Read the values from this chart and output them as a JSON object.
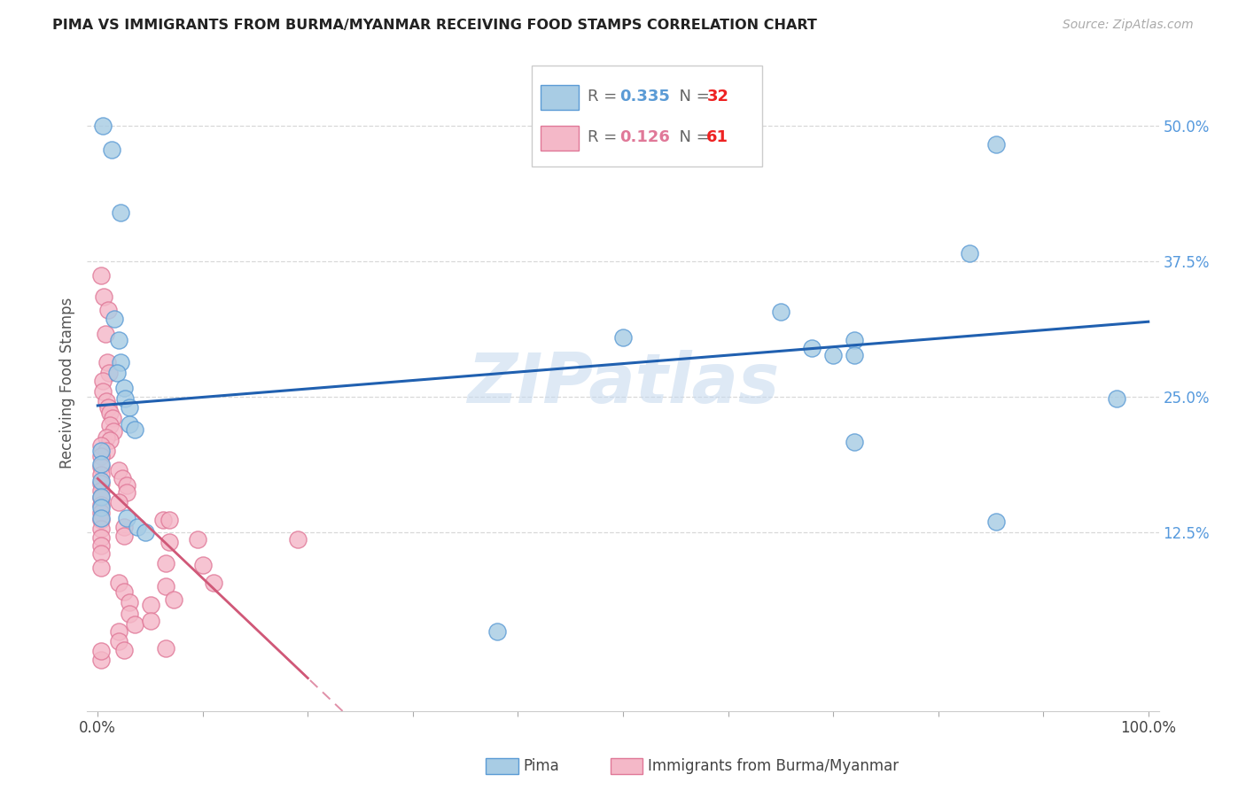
{
  "title": "PIMA VS IMMIGRANTS FROM BURMA/MYANMAR RECEIVING FOOD STAMPS CORRELATION CHART",
  "source": "Source: ZipAtlas.com",
  "ylabel": "Receiving Food Stamps",
  "ytick_labels": [
    "12.5%",
    "25.0%",
    "37.5%",
    "50.0%"
  ],
  "ytick_values": [
    0.125,
    0.25,
    0.375,
    0.5
  ],
  "xtick_vals": [
    0.0,
    0.1,
    0.2,
    0.3,
    0.4,
    0.5,
    0.6,
    0.7,
    0.8,
    0.9,
    1.0
  ],
  "xlim": [
    -0.01,
    1.01
  ],
  "ylim": [
    -0.04,
    0.565
  ],
  "blue_face": "#a8cce4",
  "blue_edge": "#5b9bd5",
  "pink_face": "#f4b8c8",
  "pink_edge": "#e07898",
  "blue_line": "#2060b0",
  "pink_line": "#d05878",
  "pink_dashed": "#e090a8",
  "text_color": "#555555",
  "ytick_color": "#5599dd",
  "red_text": "#ee2222",
  "watermark_color": "#c4d8ee",
  "grid_color": "#d8d8d8",
  "blue_points": [
    [
      0.005,
      0.5
    ],
    [
      0.013,
      0.478
    ],
    [
      0.022,
      0.42
    ],
    [
      0.016,
      0.322
    ],
    [
      0.02,
      0.302
    ],
    [
      0.022,
      0.282
    ],
    [
      0.018,
      0.272
    ],
    [
      0.025,
      0.258
    ],
    [
      0.026,
      0.248
    ],
    [
      0.03,
      0.24
    ],
    [
      0.03,
      0.225
    ],
    [
      0.035,
      0.22
    ],
    [
      0.003,
      0.2
    ],
    [
      0.003,
      0.188
    ],
    [
      0.003,
      0.172
    ],
    [
      0.003,
      0.158
    ],
    [
      0.003,
      0.148
    ],
    [
      0.003,
      0.138
    ],
    [
      0.028,
      0.138
    ],
    [
      0.038,
      0.13
    ],
    [
      0.045,
      0.125
    ],
    [
      0.38,
      0.033
    ],
    [
      0.5,
      0.305
    ],
    [
      0.62,
      0.505
    ],
    [
      0.65,
      0.328
    ],
    [
      0.68,
      0.295
    ],
    [
      0.7,
      0.288
    ],
    [
      0.72,
      0.302
    ],
    [
      0.72,
      0.288
    ],
    [
      0.83,
      0.382
    ],
    [
      0.855,
      0.483
    ],
    [
      0.855,
      0.135
    ],
    [
      0.97,
      0.248
    ],
    [
      0.72,
      0.208
    ]
  ],
  "pink_points": [
    [
      0.003,
      0.362
    ],
    [
      0.006,
      0.342
    ],
    [
      0.007,
      0.308
    ],
    [
      0.01,
      0.33
    ],
    [
      0.009,
      0.282
    ],
    [
      0.011,
      0.272
    ],
    [
      0.005,
      0.265
    ],
    [
      0.005,
      0.255
    ],
    [
      0.008,
      0.246
    ],
    [
      0.01,
      0.24
    ],
    [
      0.012,
      0.235
    ],
    [
      0.014,
      0.23
    ],
    [
      0.012,
      0.224
    ],
    [
      0.015,
      0.218
    ],
    [
      0.008,
      0.212
    ],
    [
      0.012,
      0.21
    ],
    [
      0.003,
      0.205
    ],
    [
      0.008,
      0.2
    ],
    [
      0.003,
      0.195
    ],
    [
      0.003,
      0.185
    ],
    [
      0.003,
      0.178
    ],
    [
      0.003,
      0.17
    ],
    [
      0.003,
      0.163
    ],
    [
      0.003,
      0.157
    ],
    [
      0.003,
      0.15
    ],
    [
      0.003,
      0.143
    ],
    [
      0.003,
      0.136
    ],
    [
      0.003,
      0.128
    ],
    [
      0.003,
      0.12
    ],
    [
      0.003,
      0.113
    ],
    [
      0.003,
      0.105
    ],
    [
      0.003,
      0.092
    ],
    [
      0.02,
      0.182
    ],
    [
      0.023,
      0.175
    ],
    [
      0.028,
      0.168
    ],
    [
      0.028,
      0.162
    ],
    [
      0.02,
      0.153
    ],
    [
      0.025,
      0.13
    ],
    [
      0.025,
      0.122
    ],
    [
      0.02,
      0.078
    ],
    [
      0.025,
      0.07
    ],
    [
      0.03,
      0.06
    ],
    [
      0.03,
      0.05
    ],
    [
      0.035,
      0.04
    ],
    [
      0.02,
      0.033
    ],
    [
      0.02,
      0.024
    ],
    [
      0.025,
      0.016
    ],
    [
      0.003,
      0.007
    ],
    [
      0.003,
      0.015
    ],
    [
      0.05,
      0.058
    ],
    [
      0.05,
      0.043
    ],
    [
      0.065,
      0.096
    ],
    [
      0.065,
      0.075
    ],
    [
      0.068,
      0.116
    ],
    [
      0.072,
      0.063
    ],
    [
      0.062,
      0.136
    ],
    [
      0.068,
      0.136
    ],
    [
      0.065,
      0.018
    ],
    [
      0.095,
      0.118
    ],
    [
      0.1,
      0.095
    ],
    [
      0.11,
      0.078
    ],
    [
      0.19,
      0.118
    ]
  ]
}
